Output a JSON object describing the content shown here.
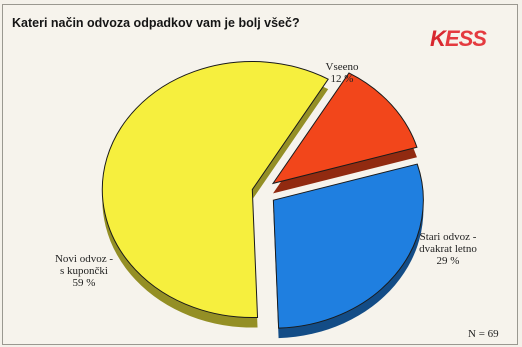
{
  "title": "Kateri način odvoza odpadkov vam je bolj všeč?",
  "logo": "KESS",
  "sample_size": "N = 69",
  "colors": {
    "new_coupons": "#f6ef3e",
    "all_same": "#f2461b",
    "old_twice": "#1f7fe0"
  },
  "chart_data": {
    "type": "pie",
    "slices": [
      {
        "label_lines": [
          "Novi odvoz -",
          "s kupončki"
        ],
        "value": 59,
        "value_text": "59 %",
        "color": "#f6ef3e"
      },
      {
        "label_lines": [
          "Vseeno"
        ],
        "value": 12,
        "value_text": "12 %",
        "color": "#f2461b"
      },
      {
        "label_lines": [
          "Stari odvoz -",
          "dvakrat letno"
        ],
        "value": 29,
        "value_text": "29 %",
        "color": "#1f7fe0"
      }
    ]
  }
}
